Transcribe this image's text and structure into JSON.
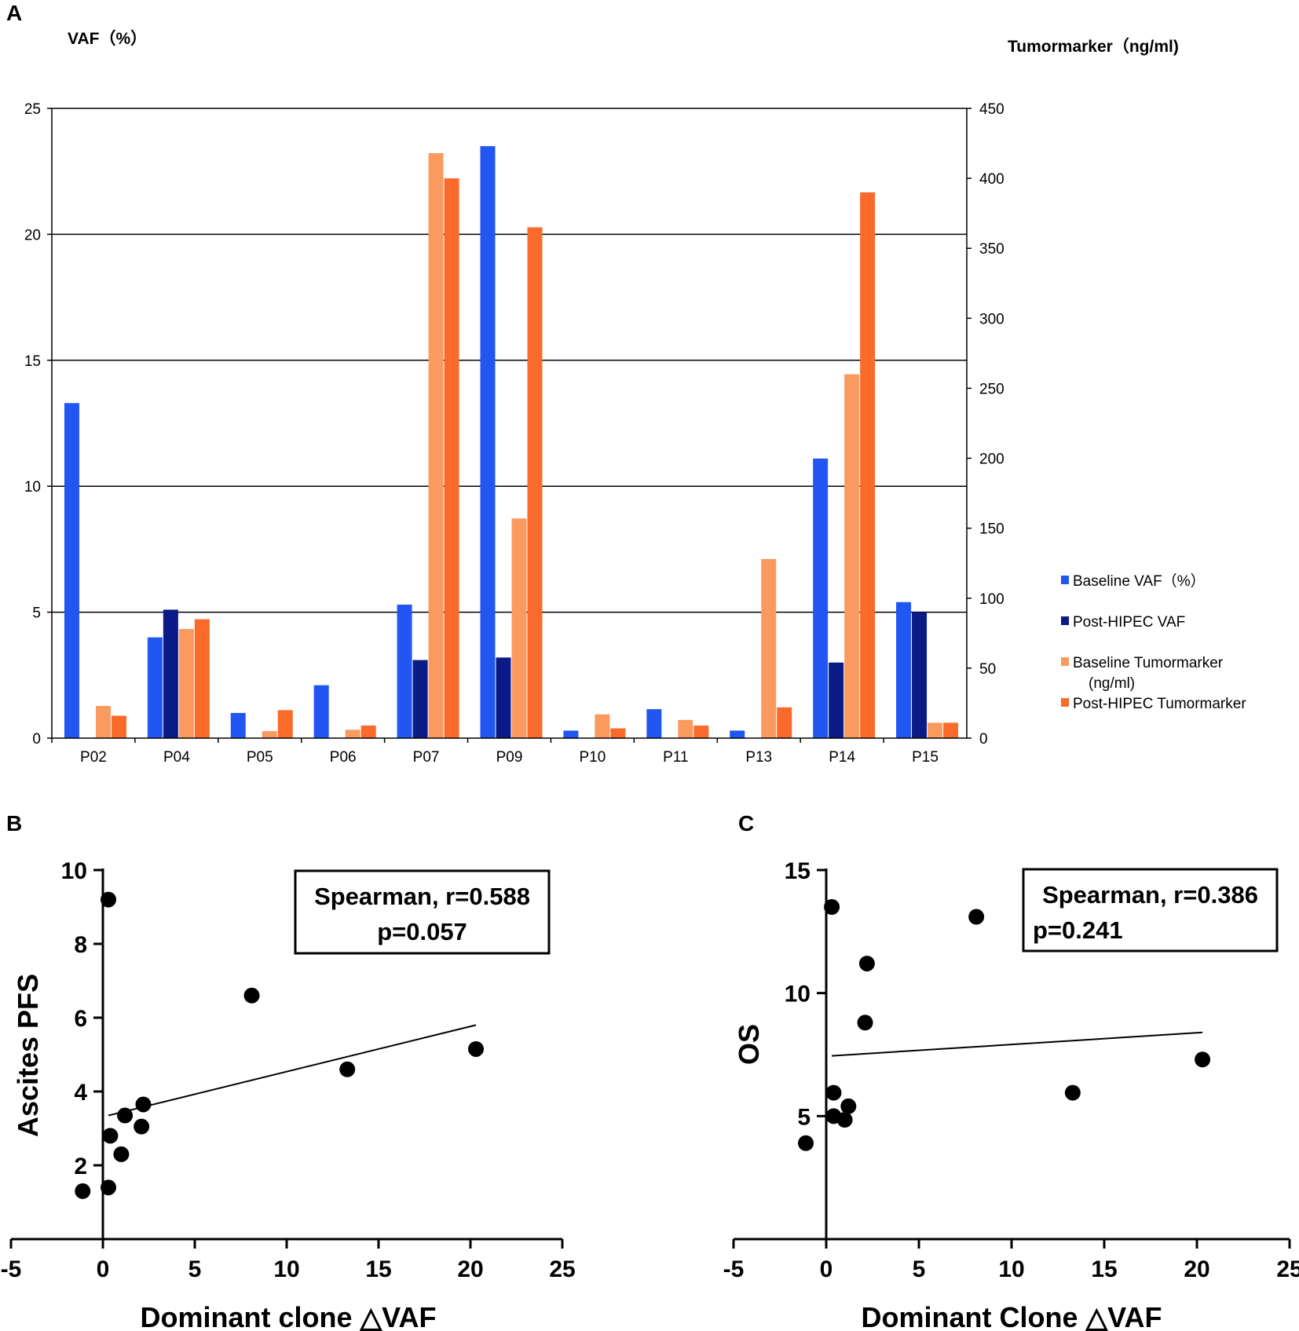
{
  "panels": {
    "a": "A",
    "b": "B",
    "c": "C"
  },
  "colors": {
    "baseline_vaf": "#2156F2",
    "post_vaf": "#0A1A86",
    "baseline_tm": "#FA9A5E",
    "post_tm": "#FA6A2A",
    "grid": "#000000",
    "point": "#000000"
  },
  "chart_data": [
    {
      "type": "bar",
      "y_left_label": "VAF（%）",
      "y_right_label": "Tumormarker（ng/ml)",
      "ylim_left": [
        0,
        25
      ],
      "ylim_right": [
        0,
        450
      ],
      "yticks_left": [
        0,
        5,
        10,
        15,
        20,
        25
      ],
      "yticks_right": [
        0,
        50,
        100,
        150,
        200,
        250,
        300,
        350,
        400,
        450
      ],
      "categories": [
        "P02",
        "P04",
        "P05",
        "P06",
        "P07",
        "P09",
        "P10",
        "P11",
        "P13",
        "P14",
        "P15"
      ],
      "series": [
        {
          "name": "Baseline VAF（%）",
          "axis": "left",
          "values": [
            13.3,
            4.0,
            1.0,
            2.1,
            5.3,
            23.5,
            0.3,
            1.15,
            0.3,
            11.1,
            5.4
          ]
        },
        {
          "name": "Post-HIPEC VAF",
          "axis": "left",
          "values": [
            0,
            5.1,
            0,
            0,
            3.1,
            3.2,
            0,
            0,
            0,
            3.0,
            5.0
          ]
        },
        {
          "name": "Baseline Tumormarker\n(ng/ml)",
          "axis": "right",
          "values": [
            23,
            78,
            5,
            6,
            418,
            157,
            17,
            13,
            128,
            260,
            11
          ]
        },
        {
          "name": "Post-HIPEC Tumormarker",
          "axis": "right",
          "values": [
            16,
            85,
            20,
            9,
            400,
            365,
            7,
            9,
            22,
            390,
            11
          ]
        }
      ]
    },
    {
      "type": "scatter",
      "xlabel": "Dominant clone △VAF",
      "ylabel": "Ascites PFS",
      "xlim": [
        -5,
        25
      ],
      "ylim": [
        0,
        10
      ],
      "xticks": [
        -5,
        0,
        5,
        10,
        15,
        20,
        25
      ],
      "yticks": [
        2,
        4,
        6,
        8,
        10
      ],
      "points": [
        {
          "x": 0.3,
          "y": 9.2
        },
        {
          "x": 8.1,
          "y": 6.6
        },
        {
          "x": 20.3,
          "y": 5.15
        },
        {
          "x": 13.3,
          "y": 4.6
        },
        {
          "x": 2.2,
          "y": 3.65
        },
        {
          "x": 1.2,
          "y": 3.35
        },
        {
          "x": 2.1,
          "y": 3.05
        },
        {
          "x": 0.4,
          "y": 2.8
        },
        {
          "x": 1.0,
          "y": 2.3
        },
        {
          "x": 0.3,
          "y": 1.4
        },
        {
          "x": -1.1,
          "y": 1.3
        }
      ],
      "fit_line": {
        "x": [
          0.3,
          20.3
        ],
        "y": [
          3.35,
          5.8
        ]
      },
      "annotation": {
        "line1": "Spearman, r=0.588",
        "line2": "p=0.057"
      }
    },
    {
      "type": "scatter",
      "xlabel": "Dominant Clone △VAF",
      "ylabel": "OS",
      "xlim": [
        -5,
        25
      ],
      "ylim": [
        0,
        15
      ],
      "xticks": [
        -5,
        0,
        5,
        10,
        15,
        20,
        25
      ],
      "yticks": [
        5,
        10,
        15
      ],
      "points": [
        {
          "x": 0.3,
          "y": 13.5
        },
        {
          "x": 8.1,
          "y": 13.1
        },
        {
          "x": 2.2,
          "y": 11.2
        },
        {
          "x": 2.1,
          "y": 8.8
        },
        {
          "x": 20.3,
          "y": 7.3
        },
        {
          "x": 0.4,
          "y": 5.95
        },
        {
          "x": 13.3,
          "y": 5.95
        },
        {
          "x": 1.2,
          "y": 5.4
        },
        {
          "x": 0.4,
          "y": 5.0
        },
        {
          "x": 1.0,
          "y": 4.85
        },
        {
          "x": -1.1,
          "y": 3.9
        }
      ],
      "fit_line": {
        "x": [
          0.3,
          20.3
        ],
        "y": [
          7.45,
          8.4
        ]
      },
      "annotation": {
        "line1": "Spearman, r=0.386",
        "line2": "p=0.241"
      }
    }
  ]
}
